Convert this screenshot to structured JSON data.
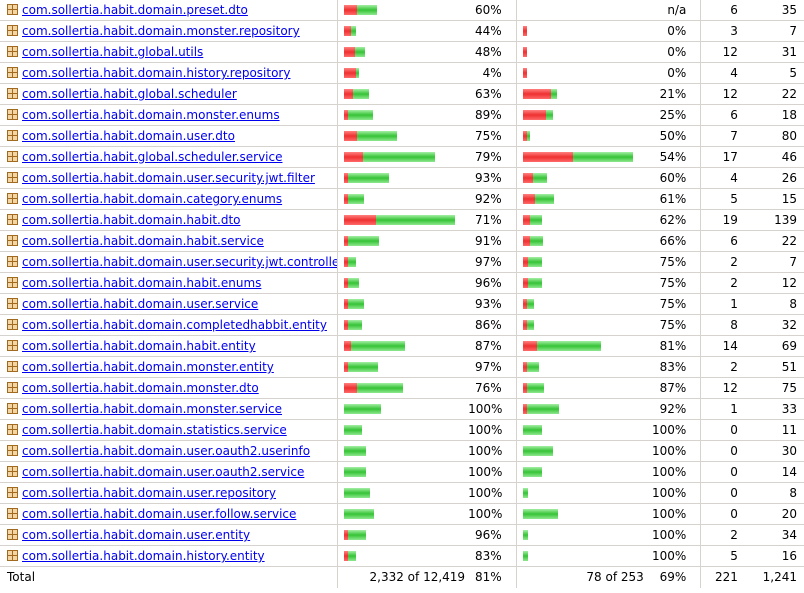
{
  "rows": [
    {
      "name": "com.sollertia.habit.domain.preset.dto",
      "instr_missed_frac": 0.11,
      "instr_covered_frac": 0.17,
      "instr_pct": "60%",
      "branch_missed_frac": 0,
      "branch_covered_frac": 0,
      "branch_pct": "n/a",
      "missed_cxty": "6",
      "cxty": "35"
    },
    {
      "name": "com.sollertia.habit.domain.monster.repository",
      "instr_missed_frac": 0.055,
      "instr_covered_frac": 0.045,
      "instr_pct": "44%",
      "branch_missed_frac": 0.03,
      "branch_covered_frac": 0,
      "branch_pct": "0%",
      "missed_cxty": "3",
      "cxty": "7"
    },
    {
      "name": "com.sollertia.habit.global.utils",
      "instr_missed_frac": 0.09,
      "instr_covered_frac": 0.08,
      "instr_pct": "48%",
      "branch_missed_frac": 0.03,
      "branch_covered_frac": 0,
      "branch_pct": "0%",
      "missed_cxty": "12",
      "cxty": "31"
    },
    {
      "name": "com.sollertia.habit.domain.history.repository",
      "instr_missed_frac": 0.1,
      "instr_covered_frac": 0.005,
      "instr_pct": "4%",
      "branch_missed_frac": 0.03,
      "branch_covered_frac": 0,
      "branch_pct": "0%",
      "missed_cxty": "4",
      "cxty": "5"
    },
    {
      "name": "com.sollertia.habit.global.scheduler",
      "instr_missed_frac": 0.075,
      "instr_covered_frac": 0.13,
      "instr_pct": "63%",
      "branch_missed_frac": 0.23,
      "branch_covered_frac": 0.05,
      "branch_pct": "21%",
      "missed_cxty": "12",
      "cxty": "22"
    },
    {
      "name": "com.sollertia.habit.domain.monster.enums",
      "instr_missed_frac": 0.03,
      "instr_covered_frac": 0.21,
      "instr_pct": "89%",
      "branch_missed_frac": 0.19,
      "branch_covered_frac": 0.06,
      "branch_pct": "25%",
      "missed_cxty": "6",
      "cxty": "18"
    },
    {
      "name": "com.sollertia.habit.domain.user.dto",
      "instr_missed_frac": 0.11,
      "instr_covered_frac": 0.33,
      "instr_pct": "75%",
      "branch_missed_frac": 0.015,
      "branch_covered_frac": 0.015,
      "branch_pct": "50%",
      "missed_cxty": "7",
      "cxty": "80"
    },
    {
      "name": "com.sollertia.habit.global.scheduler.service",
      "instr_missed_frac": 0.16,
      "instr_covered_frac": 0.6,
      "instr_pct": "79%",
      "branch_missed_frac": 0.42,
      "branch_covered_frac": 0.5,
      "branch_pct": "54%",
      "missed_cxty": "17",
      "cxty": "46"
    },
    {
      "name": "com.sollertia.habit.domain.user.security.jwt.filter",
      "instr_missed_frac": 0.02,
      "instr_covered_frac": 0.34,
      "instr_pct": "93%",
      "branch_missed_frac": 0.08,
      "branch_covered_frac": 0.12,
      "branch_pct": "60%",
      "missed_cxty": "4",
      "cxty": "26"
    },
    {
      "name": "com.sollertia.habit.domain.category.enums",
      "instr_missed_frac": 0.01,
      "instr_covered_frac": 0.13,
      "instr_pct": "92%",
      "branch_missed_frac": 0.1,
      "branch_covered_frac": 0.16,
      "branch_pct": "61%",
      "missed_cxty": "5",
      "cxty": "15"
    },
    {
      "name": "com.sollertia.habit.domain.habit.dto",
      "instr_missed_frac": 0.27,
      "instr_covered_frac": 0.66,
      "instr_pct": "71%",
      "branch_missed_frac": 0.06,
      "branch_covered_frac": 0.1,
      "branch_pct": "62%",
      "missed_cxty": "19",
      "cxty": "139"
    },
    {
      "name": "com.sollertia.habit.domain.habit.service",
      "instr_missed_frac": 0.025,
      "instr_covered_frac": 0.26,
      "instr_pct": "91%",
      "branch_missed_frac": 0.055,
      "branch_covered_frac": 0.11,
      "branch_pct": "66%",
      "missed_cxty": "6",
      "cxty": "22"
    },
    {
      "name": "com.sollertia.habit.domain.user.security.jwt.controller",
      "instr_missed_frac": 0.003,
      "instr_covered_frac": 0.07,
      "instr_pct": "97%",
      "branch_missed_frac": 0.04,
      "branch_covered_frac": 0.12,
      "branch_pct": "75%",
      "missed_cxty": "2",
      "cxty": "7"
    },
    {
      "name": "com.sollertia.habit.domain.habit.enums",
      "instr_missed_frac": 0.004,
      "instr_covered_frac": 0.09,
      "instr_pct": "96%",
      "branch_missed_frac": 0.04,
      "branch_covered_frac": 0.12,
      "branch_pct": "75%",
      "missed_cxty": "2",
      "cxty": "12"
    },
    {
      "name": "com.sollertia.habit.domain.user.service",
      "instr_missed_frac": 0.01,
      "instr_covered_frac": 0.13,
      "instr_pct": "93%",
      "branch_missed_frac": 0.02,
      "branch_covered_frac": 0.06,
      "branch_pct": "75%",
      "missed_cxty": "1",
      "cxty": "8"
    },
    {
      "name": "com.sollertia.habit.domain.completedhabbit.entity",
      "instr_missed_frac": 0.02,
      "instr_covered_frac": 0.12,
      "instr_pct": "86%",
      "branch_missed_frac": 0.02,
      "branch_covered_frac": 0.06,
      "branch_pct": "75%",
      "missed_cxty": "8",
      "cxty": "32"
    },
    {
      "name": "com.sollertia.habit.domain.habit.entity",
      "instr_missed_frac": 0.055,
      "instr_covered_frac": 0.45,
      "instr_pct": "87%",
      "branch_missed_frac": 0.12,
      "branch_covered_frac": 0.53,
      "branch_pct": "81%",
      "missed_cxty": "14",
      "cxty": "69"
    },
    {
      "name": "com.sollertia.habit.domain.monster.entity",
      "instr_missed_frac": 0.003,
      "instr_covered_frac": 0.25,
      "instr_pct": "97%",
      "branch_missed_frac": 0.02,
      "branch_covered_frac": 0.1,
      "branch_pct": "83%",
      "missed_cxty": "2",
      "cxty": "51"
    },
    {
      "name": "com.sollertia.habit.domain.monster.dto",
      "instr_missed_frac": 0.11,
      "instr_covered_frac": 0.38,
      "instr_pct": "76%",
      "branch_missed_frac": 0.02,
      "branch_covered_frac": 0.14,
      "branch_pct": "87%",
      "missed_cxty": "12",
      "cxty": "75"
    },
    {
      "name": "com.sollertia.habit.domain.monster.service",
      "instr_missed_frac": 0,
      "instr_covered_frac": 0.31,
      "instr_pct": "100%",
      "branch_missed_frac": 0.02,
      "branch_covered_frac": 0.27,
      "branch_pct": "92%",
      "missed_cxty": "1",
      "cxty": "33"
    },
    {
      "name": "com.sollertia.habit.domain.statistics.service",
      "instr_missed_frac": 0,
      "instr_covered_frac": 0.15,
      "instr_pct": "100%",
      "branch_missed_frac": 0,
      "branch_covered_frac": 0.16,
      "branch_pct": "100%",
      "missed_cxty": "0",
      "cxty": "11"
    },
    {
      "name": "com.sollertia.habit.domain.user.oauth2.userinfo",
      "instr_missed_frac": 0,
      "instr_covered_frac": 0.18,
      "instr_pct": "100%",
      "branch_missed_frac": 0,
      "branch_covered_frac": 0.25,
      "branch_pct": "100%",
      "missed_cxty": "0",
      "cxty": "30"
    },
    {
      "name": "com.sollertia.habit.domain.user.oauth2.service",
      "instr_missed_frac": 0,
      "instr_covered_frac": 0.18,
      "instr_pct": "100%",
      "branch_missed_frac": 0,
      "branch_covered_frac": 0.16,
      "branch_pct": "100%",
      "missed_cxty": "0",
      "cxty": "14"
    },
    {
      "name": "com.sollertia.habit.domain.user.repository",
      "instr_missed_frac": 0,
      "instr_covered_frac": 0.22,
      "instr_pct": "100%",
      "branch_missed_frac": 0,
      "branch_covered_frac": 0.04,
      "branch_pct": "100%",
      "missed_cxty": "0",
      "cxty": "8"
    },
    {
      "name": "com.sollertia.habit.domain.user.follow.service",
      "instr_missed_frac": 0,
      "instr_covered_frac": 0.25,
      "instr_pct": "100%",
      "branch_missed_frac": 0,
      "branch_covered_frac": 0.29,
      "branch_pct": "100%",
      "missed_cxty": "0",
      "cxty": "20"
    },
    {
      "name": "com.sollertia.habit.domain.user.entity",
      "instr_missed_frac": 0.002,
      "instr_covered_frac": 0.15,
      "instr_pct": "96%",
      "branch_missed_frac": 0,
      "branch_covered_frac": 0.04,
      "branch_pct": "100%",
      "missed_cxty": "2",
      "cxty": "34"
    },
    {
      "name": "com.sollertia.habit.domain.history.entity",
      "instr_missed_frac": 0.003,
      "instr_covered_frac": 0.07,
      "instr_pct": "83%",
      "branch_missed_frac": 0,
      "branch_covered_frac": 0.04,
      "branch_pct": "100%",
      "missed_cxty": "5",
      "cxty": "16"
    }
  ],
  "total": {
    "label": "Total",
    "instructions": "2,332 of 12,419",
    "instr_pct": "81%",
    "branches": "78 of 253",
    "branch_pct": "69%",
    "missed_cxty": "221",
    "cxty": "1,241"
  },
  "colors": {
    "missed": "#ee3030",
    "covered": "#36c336",
    "link": "#0000ee",
    "package_icon": "#b8863b"
  },
  "icons": {
    "package": "package-icon"
  }
}
